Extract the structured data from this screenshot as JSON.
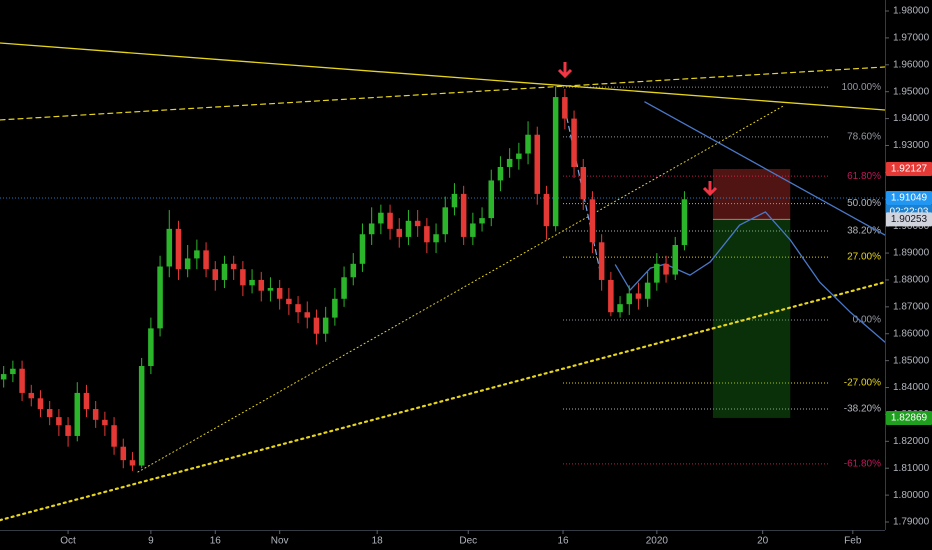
{
  "chart_data": {
    "type": "candlestick",
    "x": [
      -7,
      -6,
      -5,
      -4,
      -3,
      -2,
      -1,
      0,
      1,
      2,
      3,
      4,
      5,
      6,
      7,
      8,
      9,
      10,
      11,
      12,
      13,
      14,
      15,
      16,
      17,
      18,
      19,
      20,
      21,
      22,
      23,
      24,
      25,
      26,
      27,
      28,
      29,
      30,
      31,
      32,
      33,
      34,
      35,
      36,
      37,
      38,
      39,
      40,
      41,
      42,
      43,
      44,
      45,
      46,
      47,
      48,
      49,
      50,
      51,
      52,
      53,
      54,
      55,
      56,
      57,
      58,
      59,
      60,
      61,
      62,
      63,
      64,
      65,
      66,
      67
    ],
    "open": [
      1.843,
      1.845,
      1.847,
      1.838,
      1.836,
      1.832,
      1.829,
      1.826,
      1.822,
      1.838,
      1.832,
      1.828,
      1.826,
      1.818,
      1.813,
      1.811,
      1.848,
      1.862,
      1.885,
      1.899,
      1.884,
      1.888,
      1.891,
      1.884,
      1.88,
      1.886,
      1.884,
      1.878,
      1.88,
      1.876,
      1.877,
      1.873,
      1.871,
      1.868,
      1.866,
      1.86,
      1.866,
      1.873,
      1.881,
      1.886,
      1.897,
      1.901,
      1.905,
      1.899,
      1.896,
      1.902,
      1.9,
      1.894,
      1.897,
      1.907,
      1.912,
      1.896,
      1.901,
      1.903,
      1.917,
      1.922,
      1.925,
      1.927,
      1.934,
      1.912,
      1.9,
      1.948,
      1.94,
      1.922,
      1.91,
      1.894,
      1.88,
      1.868,
      1.871,
      1.875,
      1.873,
      1.879,
      1.886,
      1.882,
      1.893
    ],
    "high": [
      1.848,
      1.85,
      1.85,
      1.841,
      1.839,
      1.835,
      1.832,
      1.829,
      1.842,
      1.841,
      1.835,
      1.831,
      1.829,
      1.821,
      1.816,
      1.851,
      1.866,
      1.889,
      1.906,
      1.902,
      1.893,
      1.895,
      1.894,
      1.887,
      1.889,
      1.889,
      1.887,
      1.884,
      1.883,
      1.881,
      1.88,
      1.877,
      1.874,
      1.872,
      1.869,
      1.87,
      1.877,
      1.885,
      1.89,
      1.901,
      1.907,
      1.908,
      1.908,
      1.903,
      1.906,
      1.906,
      1.903,
      1.901,
      1.911,
      1.916,
      1.915,
      1.905,
      1.907,
      1.921,
      1.926,
      1.929,
      1.931,
      1.939,
      1.937,
      1.915,
      1.952,
      1.951,
      1.943,
      1.925,
      1.913,
      1.897,
      1.883,
      1.874,
      1.878,
      1.879,
      1.883,
      1.89,
      1.889,
      1.896,
      1.913
    ],
    "low": [
      1.84,
      1.842,
      1.835,
      1.833,
      1.829,
      1.826,
      1.822,
      1.818,
      1.82,
      1.829,
      1.825,
      1.822,
      1.815,
      1.81,
      1.809,
      1.81,
      1.845,
      1.859,
      1.881,
      1.88,
      1.881,
      1.884,
      1.881,
      1.876,
      1.877,
      1.88,
      1.874,
      1.875,
      1.872,
      1.872,
      1.869,
      1.867,
      1.864,
      1.862,
      1.856,
      1.857,
      1.863,
      1.87,
      1.878,
      1.883,
      1.893,
      1.897,
      1.895,
      1.892,
      1.893,
      1.896,
      1.89,
      1.89,
      1.894,
      1.904,
      1.893,
      1.893,
      1.898,
      1.9,
      1.913,
      1.918,
      1.921,
      1.923,
      1.908,
      1.895,
      1.898,
      1.936,
      1.918,
      1.906,
      1.89,
      1.876,
      1.8665,
      1.866,
      1.867,
      1.869,
      1.87,
      1.876,
      1.879,
      1.88,
      1.891
    ],
    "close": [
      1.845,
      1.847,
      1.838,
      1.836,
      1.832,
      1.829,
      1.826,
      1.822,
      1.838,
      1.832,
      1.828,
      1.826,
      1.818,
      1.813,
      1.811,
      1.848,
      1.862,
      1.885,
      1.899,
      1.884,
      1.888,
      1.891,
      1.884,
      1.88,
      1.886,
      1.884,
      1.878,
      1.88,
      1.876,
      1.877,
      1.873,
      1.871,
      1.868,
      1.866,
      1.86,
      1.866,
      1.873,
      1.881,
      1.886,
      1.897,
      1.901,
      1.905,
      1.899,
      1.896,
      1.902,
      1.9,
      1.894,
      1.897,
      1.907,
      1.912,
      1.896,
      1.901,
      1.903,
      1.917,
      1.922,
      1.925,
      1.927,
      1.934,
      1.912,
      1.9,
      1.948,
      1.94,
      1.922,
      1.91,
      1.894,
      1.88,
      1.868,
      1.871,
      1.875,
      1.873,
      1.879,
      1.886,
      1.882,
      1.893,
      1.91
    ],
    "up_color": "#2bb52b",
    "down_color": "#e53935",
    "xlim": [
      -7.4,
      88.8
    ],
    "xticks": [
      {
        "value": 0,
        "label": "Oct"
      },
      9,
      16,
      {
        "value": 23,
        "label": "Nov"
      },
      {
        "value": 33.6,
        "label": "18"
      },
      {
        "value": 43.5,
        "label": "Dec"
      },
      {
        "value": 53.8,
        "label": "16"
      },
      {
        "value": 64,
        "label": "2020"
      },
      {
        "value": 75.5,
        "label": "20"
      },
      {
        "value": 85.3,
        "label": "Feb"
      }
    ],
    "ylim": [
      1.78703,
      1.98409
    ],
    "yticks": [
      {
        "value": 1.98,
        "label": "1.98000"
      },
      {
        "value": 1.97,
        "label": "1.97000"
      },
      {
        "value": 1.96,
        "label": "1.96000"
      },
      {
        "value": 1.95,
        "label": "1.95000"
      },
      {
        "value": 1.94,
        "label": "1.94000"
      },
      {
        "value": 1.93,
        "label": "1.93000"
      },
      {
        "value": 1.92,
        "label": "1.92000"
      },
      {
        "value": 1.91,
        "label": "1.91000"
      },
      {
        "value": 1.9,
        "label": "1.90000"
      },
      {
        "value": 1.89,
        "label": "1.89000"
      },
      {
        "value": 1.88,
        "label": "1.88000"
      },
      {
        "value": 1.87,
        "label": "1.87000"
      },
      {
        "value": 1.86,
        "label": "1.86000"
      },
      {
        "value": 1.85,
        "label": "1.85000"
      },
      {
        "value": 1.84,
        "label": "1.84000"
      },
      {
        "value": 1.83,
        "label": "1.83000"
      },
      {
        "value": 1.82,
        "label": "1.82000"
      },
      {
        "value": 1.81,
        "label": "1.81000"
      },
      {
        "value": 1.8,
        "label": "1.80000"
      },
      {
        "value": 1.79,
        "label": "1.79000"
      }
    ],
    "last_price": 1.91049,
    "countdown": "02:22:03",
    "last_price_color": "#2196f3",
    "fib_x": [
      53.8,
      82.8
    ],
    "fib_levels": [
      {
        "label": "100.00%",
        "price": 1.9517,
        "color": "#9598a1"
      },
      {
        "label": "78.60%",
        "price": 1.9332,
        "color": "#9598a1"
      },
      {
        "label": "61.80%",
        "price": 1.9186,
        "color": "#c2185b"
      },
      {
        "label": "50.00%",
        "price": 1.9084,
        "color": "#b2b5be"
      },
      {
        "label": "38.20%",
        "price": 1.8982,
        "color": "#b2b5be"
      },
      {
        "label": "27.00%",
        "price": 1.8885,
        "color": "#e6d51c"
      },
      {
        "label": "0.00%",
        "price": 1.8651,
        "color": "#9598a1"
      },
      {
        "label": "-27.00%",
        "price": 1.8417,
        "color": "#e6d51c"
      },
      {
        "label": "-38.20%",
        "price": 1.832,
        "color": "#b2b5be"
      },
      {
        "label": "-61.80%",
        "price": 1.8116,
        "color": "#c2185b"
      }
    ],
    "trend_lines": [
      {
        "color": "#e6d51c",
        "style": "solid",
        "points": [
          [
            -7.4,
            1.9681
          ],
          [
            88.8,
            1.9432
          ]
        ]
      },
      {
        "color": "#e6d51c",
        "style": "dashed",
        "points": [
          [
            -7.4,
            1.9395
          ],
          [
            88.8,
            1.9592
          ]
        ]
      },
      {
        "color": "#e6d51c",
        "style": "dotted",
        "points": [
          [
            7.6,
            1.8086
          ],
          [
            77.9,
            1.945
          ]
        ]
      },
      {
        "color": "#e6d51c",
        "style": "dotted-bold",
        "points": [
          [
            -7.4,
            1.7907
          ],
          [
            88.8,
            1.8792
          ]
        ]
      },
      {
        "color": "#4a78c8",
        "style": "solid",
        "points": [
          [
            62.7,
            1.9462
          ],
          [
            88.8,
            1.8967
          ]
        ]
      },
      {
        "color": "#4a78c8",
        "style": "solid",
        "points": [
          [
            59.5,
            1.8856
          ],
          [
            61.1,
            1.8763
          ],
          [
            63.3,
            1.8844
          ],
          [
            64.9,
            1.8859
          ],
          [
            67.6,
            1.8818
          ],
          [
            69.8,
            1.8867
          ],
          [
            73.0,
            1.9004
          ],
          [
            75.8,
            1.9053
          ],
          [
            78.5,
            1.8949
          ],
          [
            81.7,
            1.8792
          ],
          [
            85.0,
            1.8681
          ],
          [
            88.8,
            1.8569
          ]
        ]
      },
      {
        "color": "#7ea8e6",
        "style": "dashed",
        "points": [
          [
            53.8,
            1.9469
          ],
          [
            57.8,
            1.8837
          ]
        ]
      }
    ],
    "position": {
      "x": [
        70.1,
        78.5
      ],
      "entry": 1.90253,
      "stop": 1.92127,
      "target": 1.82869,
      "stop_color": "#e53935",
      "entry_color": "#d1d4dc",
      "target_color": "#1e9f1e"
    }
  }
}
